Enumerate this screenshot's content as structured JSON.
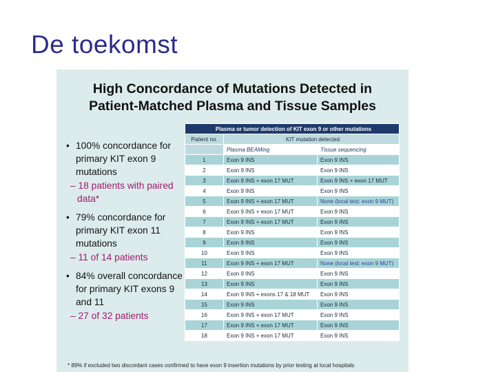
{
  "slide_title": "De toekomst",
  "panel": {
    "heading_line1": "High Concordance of Mutations Detected in",
    "heading_line2": "Patient-Matched Plasma and Tissue Samples"
  },
  "bullets": [
    {
      "main": "100% concordance for primary KIT exon 9 mutations",
      "sub": "– 18 patients with paired data*"
    },
    {
      "main": "79% concordance for primary KIT exon 11 mutations",
      "sub": "– 11 of 14 patients"
    },
    {
      "main": "84% overall concordance for primary KIT exons 9 and 11",
      "sub": "– 27 of 32 patients"
    }
  ],
  "table": {
    "top_header": "Plasma or tumor detection of KIT exon 9 or other mutations",
    "col_patient": "Patient no.",
    "col_detected": "KIT mutation detected",
    "sub_plasma": "Plasma BEAMing",
    "sub_tissue": "Tissue sequencing",
    "rows": [
      {
        "no": "1",
        "plasma": "Exon 9 INS",
        "tissue": "Exon 9 INS"
      },
      {
        "no": "2",
        "plasma": "Exon 9 INS",
        "tissue": "Exon 9 INS"
      },
      {
        "no": "3",
        "plasma": "Exon 9 INS + exon 17 MUT",
        "tissue": "Exon 9 INS + exon 17 MUT"
      },
      {
        "no": "4",
        "plasma": "Exon 9 INS",
        "tissue": "Exon 9 INS"
      },
      {
        "no": "5",
        "plasma": "Exon 9 INS + exon 17 MUT",
        "tissue": "None (local test: exon 9 MUT)"
      },
      {
        "no": "6",
        "plasma": "Exon 9 INS + exon 17 MUT",
        "tissue": "Exon 9 INS"
      },
      {
        "no": "7",
        "plasma": "Exon 9 INS + exon 17 MUT",
        "tissue": "Exon 9 INS"
      },
      {
        "no": "8",
        "plasma": "Exon 9 INS",
        "tissue": "Exon 9 INS"
      },
      {
        "no": "9",
        "plasma": "Exon 9 INS",
        "tissue": "Exon 9 INS"
      },
      {
        "no": "10",
        "plasma": "Exon 9 INS",
        "tissue": "Exon 9 INS"
      },
      {
        "no": "11",
        "plasma": "Exon 9 INS + exon 17 MUT",
        "tissue": "None (local test: exon 9 MUT)"
      },
      {
        "no": "12",
        "plasma": "Exon 9 INS",
        "tissue": "Exon 9 INS"
      },
      {
        "no": "13",
        "plasma": "Exon 9 INS",
        "tissue": "Exon 9 INS"
      },
      {
        "no": "14",
        "plasma": "Exon 9 INS + exons 17 & 18 MUT",
        "tissue": "Exon 9 INS"
      },
      {
        "no": "15",
        "plasma": "Exon 9 INS",
        "tissue": "Exon 9 INS"
      },
      {
        "no": "16",
        "plasma": "Exon 9 INS + exon 17 MUT",
        "tissue": "Exon 9 INS"
      },
      {
        "no": "17",
        "plasma": "Exon 9 INS + exon 17 MUT",
        "tissue": "Exon 9 INS"
      },
      {
        "no": "18",
        "plasma": "Exon 9 INS + exon 17 MUT",
        "tissue": "Exon 9 INS"
      }
    ]
  },
  "footnote": "* 89% if excluded two discordant cases confirmed to have exon 9 insertion mutations by prior testing at local hospitals",
  "colors": {
    "title": "#2b2b8c",
    "panel": "#dcecec",
    "table_header": "#1f3a6a",
    "row_teal": "#a9d4d7",
    "subbullet": "#a01a6e"
  }
}
